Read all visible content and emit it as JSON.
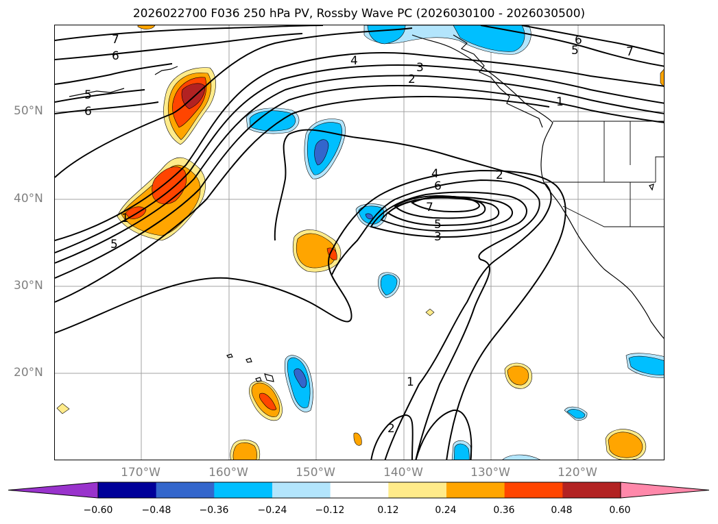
{
  "title": "2026022700 F036 250 hPa PV, Rossby Wave PC (2026030100 - 2026030500)",
  "lat_labels": [
    "50°N",
    "40°N",
    "30°N",
    "20°N"
  ],
  "lon_labels": [
    "170°W",
    "160°W",
    "150°W",
    "140°W",
    "130°W",
    "120°W"
  ],
  "contour_labels": [
    "7",
    "6",
    "5",
    "6",
    "4",
    "3",
    "2",
    "1",
    "6",
    "5",
    "7",
    "1",
    "5",
    "4",
    "2",
    "6",
    "7",
    "5",
    "3",
    "1",
    "2"
  ],
  "colorbar": {
    "ticks": [
      "−0.60",
      "−0.48",
      "−0.36",
      "−0.24",
      "−0.12",
      "0.12",
      "0.24",
      "0.36",
      "0.48",
      "0.60"
    ],
    "colors": [
      "#9933cc",
      "#000099",
      "#3366cc",
      "#00bfff",
      "#b3e5fc",
      "#ffffff",
      "#ffeb8a",
      "#ffa500",
      "#ff4500",
      "#b22222",
      "#ff88aa"
    ]
  }
}
